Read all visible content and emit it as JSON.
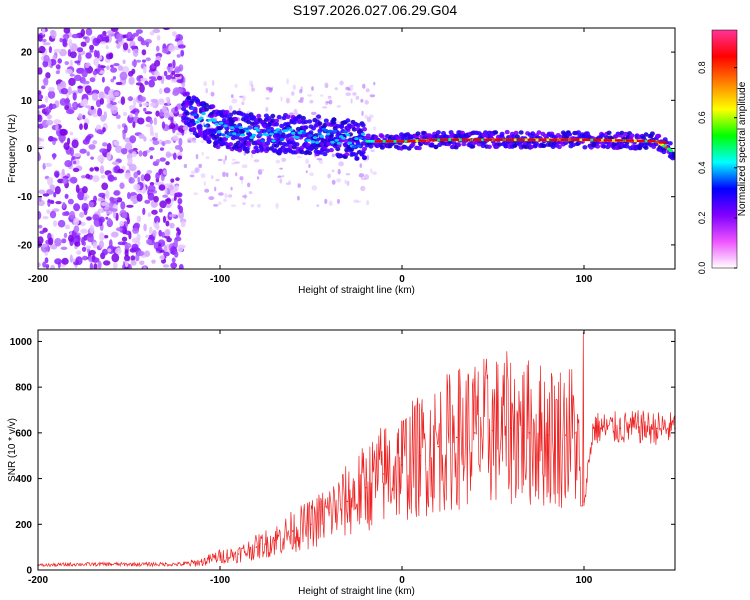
{
  "title": "S197.2026.027.06.29.G04",
  "chart_data": [
    {
      "type": "heatmap",
      "title": "S197.2026.027.06.29.G04",
      "xlabel": "Height of straight line (km)",
      "ylabel": "Frequency (Hz)",
      "xlim": [
        -200,
        150
      ],
      "ylim": [
        -25,
        25
      ],
      "xticks": [
        -200,
        -100,
        0,
        100
      ],
      "yticks": [
        -20,
        -10,
        0,
        10,
        20
      ],
      "colorbar": {
        "label": "Normalized spectral amplitude",
        "range": [
          0,
          0.95
        ],
        "ticks": [
          "0.0",
          "0.2",
          "0.4",
          "0.6",
          "0.8"
        ],
        "colors": [
          "#ffffff",
          "#ee55ff",
          "#8000ff",
          "#0000ff",
          "#00ffff",
          "#00ff00",
          "#ffff00",
          "#ff8000",
          "#ff0000",
          "#ff3399"
        ]
      },
      "features": {
        "noise_region_x": [
          -200,
          -120
        ],
        "signal_track": [
          {
            "x": -120,
            "f": 8
          },
          {
            "x": -100,
            "f": 4
          },
          {
            "x": -80,
            "f": 3
          },
          {
            "x": -60,
            "f": 3
          },
          {
            "x": -40,
            "f": 2.5
          },
          {
            "x": -20,
            "f": 1.5
          },
          {
            "x": 0,
            "f": 1.5
          },
          {
            "x": 20,
            "f": 1.8
          },
          {
            "x": 50,
            "f": 1.8
          },
          {
            "x": 100,
            "f": 1.8
          },
          {
            "x": 140,
            "f": 1.5
          },
          {
            "x": 150,
            "f": -1
          }
        ]
      }
    },
    {
      "type": "line",
      "xlabel": "Height of straight line (km)",
      "ylabel": "SNR (10 * v/v)",
      "xlim": [
        -200,
        150
      ],
      "ylim": [
        0,
        1050
      ],
      "xticks": [
        -200,
        -100,
        0,
        100
      ],
      "yticks": [
        0,
        200,
        400,
        600,
        800,
        1000
      ],
      "series": [
        {
          "name": "SNR",
          "color": "#ee2222",
          "x": [
            -200,
            -180,
            -160,
            -140,
            -120,
            -110,
            -100,
            -90,
            -80,
            -70,
            -60,
            -50,
            -40,
            -30,
            -20,
            -10,
            0,
            10,
            20,
            30,
            40,
            50,
            60,
            70,
            80,
            90,
            95,
            100,
            105,
            110,
            120,
            130,
            140,
            150
          ],
          "y": [
            20,
            25,
            25,
            25,
            25,
            35,
            60,
            70,
            100,
            130,
            170,
            200,
            250,
            300,
            360,
            420,
            460,
            500,
            540,
            580,
            600,
            610,
            620,
            600,
            590,
            590,
            600,
            300,
            620,
            620,
            620,
            625,
            620,
            620
          ]
        }
      ]
    }
  ]
}
